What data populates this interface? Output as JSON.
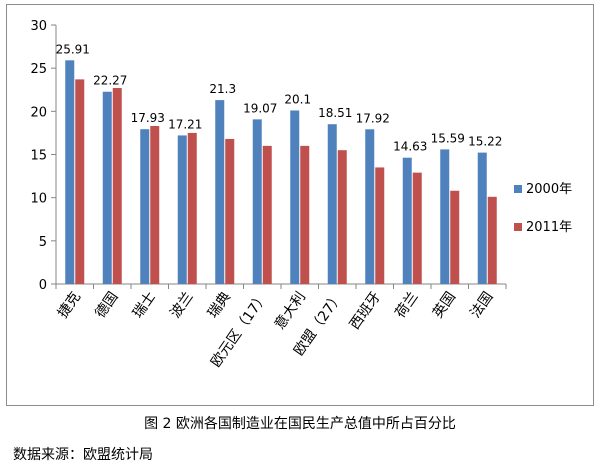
{
  "chart_data": {
    "type": "bar",
    "title": "",
    "xlabel": "",
    "ylabel": "",
    "categories": [
      "捷克",
      "德国",
      "瑞士",
      "波兰",
      "瑞典",
      "欧元区（17）",
      "意大利",
      "欧盟（27）",
      "西班牙",
      "荷兰",
      "英国",
      "法国"
    ],
    "series": [
      {
        "name": "2000年",
        "color": "#4F81BD",
        "values": [
          25.91,
          22.27,
          17.93,
          17.21,
          21.3,
          19.07,
          20.1,
          18.51,
          17.92,
          14.63,
          15.59,
          15.22
        ],
        "labels": [
          "25.91",
          "22.27",
          "17.93",
          "17.21",
          "21.3",
          "19.07",
          "20.1",
          "18.51",
          "17.92",
          "14.63",
          "15.59",
          "15.22"
        ]
      },
      {
        "name": "2011年",
        "color": "#C0504D",
        "values": [
          23.7,
          22.7,
          18.3,
          17.5,
          16.8,
          16.0,
          16.0,
          15.5,
          13.5,
          12.9,
          10.8,
          10.1
        ]
      }
    ],
    "ylim": [
      0,
      30
    ],
    "yticks": [
      0,
      5,
      10,
      15,
      20,
      25,
      30
    ],
    "grid": false,
    "legend": "right"
  },
  "caption": "图 2 欧洲各国制造业在国民生产总值中所占百分比",
  "source": "数据来源：欧盟统计局"
}
